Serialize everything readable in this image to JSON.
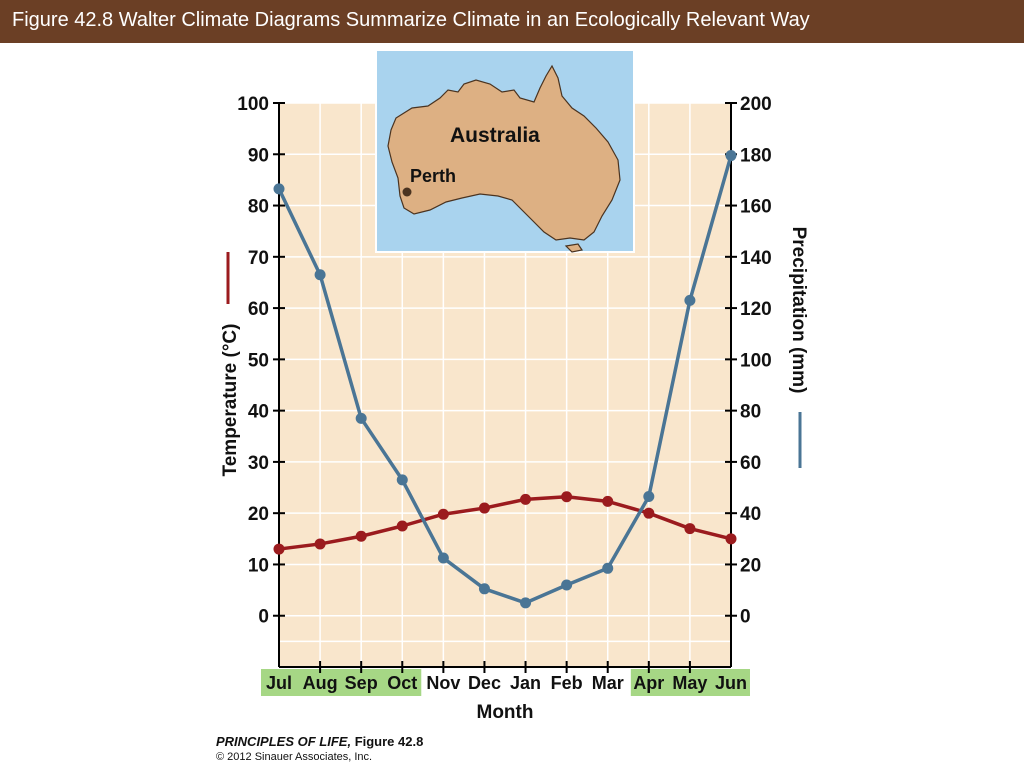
{
  "header": {
    "title": "Figure 42.8  Walter Climate Diagrams Summarize Climate in an Ecologically Relevant Way"
  },
  "colors": {
    "title_bar": "#6b3f25",
    "plot_background": "#f9e6cc",
    "temperature": "#9b1b1e",
    "precipitation": "#4a7595",
    "month_highlight": "#a6d785",
    "map_water": "#a9d3ee",
    "map_land": "#ddb083"
  },
  "inset_map": {
    "continent_label": "Australia",
    "city_label": "Perth"
  },
  "credit": {
    "book": "PRINCIPLES OF LIFE,",
    "figure": " Figure 42.8",
    "copyright": "© 2012 Sinauer Associates, Inc."
  },
  "chart_data": {
    "type": "line",
    "categories": [
      "Jul",
      "Aug",
      "Sep",
      "Oct",
      "Nov",
      "Dec",
      "Jan",
      "Feb",
      "Mar",
      "Apr",
      "May",
      "Jun"
    ],
    "highlighted_categories": [
      "Jul",
      "Aug",
      "Sep",
      "Oct",
      "Apr",
      "May",
      "Jun"
    ],
    "xlabel": "Month",
    "ylabel_left": "Temperature (°C)",
    "ylabel_right": "Precipitation (mm)",
    "ylim_left": [
      -10,
      100
    ],
    "ylim_right": [
      -20,
      200
    ],
    "yticks_left": [
      0,
      10,
      20,
      30,
      40,
      50,
      60,
      70,
      80,
      90,
      100
    ],
    "yticks_right": [
      0,
      20,
      40,
      60,
      80,
      100,
      120,
      140,
      160,
      180,
      200
    ],
    "grid": true,
    "series": [
      {
        "name": "Temperature (°C)",
        "axis": "left",
        "color": "#9b1b1e",
        "values": [
          13,
          14,
          15.5,
          17.5,
          19.8,
          21,
          22.7,
          23.2,
          22.3,
          20,
          17,
          15
        ]
      },
      {
        "name": "Precipitation (mm)",
        "axis": "right",
        "color": "#4a7595",
        "values": [
          166.5,
          133,
          77,
          53,
          22.5,
          10.5,
          5,
          12,
          18.5,
          46.5,
          123,
          179.5
        ]
      }
    ]
  }
}
